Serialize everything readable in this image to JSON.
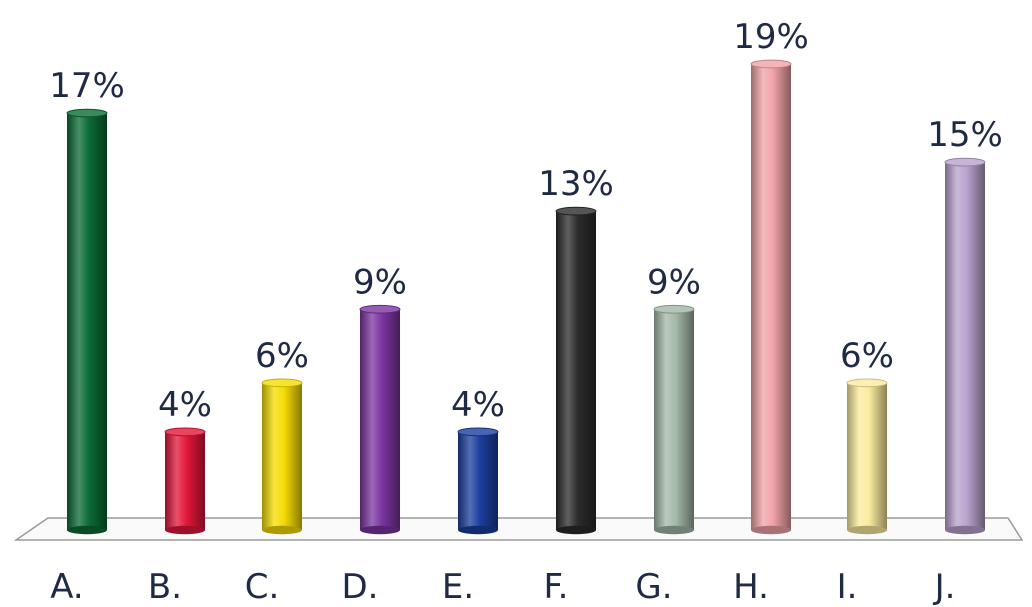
{
  "chart_data": {
    "type": "bar",
    "categories": [
      "A.",
      "B.",
      "C.",
      "D.",
      "E.",
      "F.",
      "G.",
      "H.",
      "I.",
      "J."
    ],
    "values": [
      17,
      4,
      6,
      9,
      4,
      13,
      9,
      19,
      6,
      15
    ],
    "value_labels": [
      "17%",
      "4%",
      "6%",
      "9%",
      "4%",
      "13%",
      "9%",
      "19%",
      "6%",
      "15%"
    ],
    "colors": [
      "#0b6b35",
      "#e2163a",
      "#f5dc00",
      "#7b35a0",
      "#1b3f9e",
      "#2b2b2b",
      "#a3b8a7",
      "#f0a3a8",
      "#fbeb9e",
      "#b9a2cc"
    ],
    "ylim": [
      0,
      19
    ],
    "grid": false,
    "legend": "none"
  }
}
